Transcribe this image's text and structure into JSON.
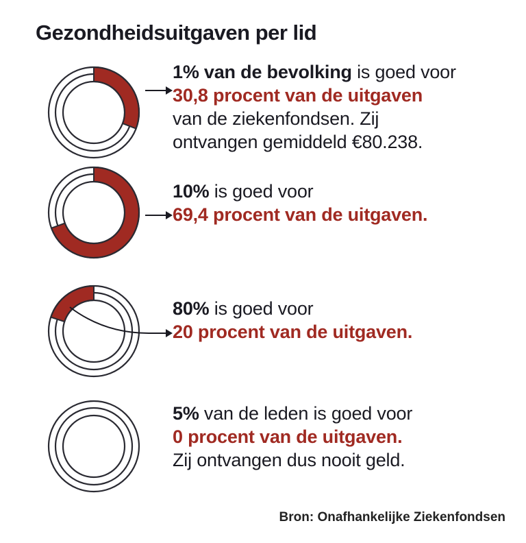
{
  "title": "Gezondheidsuitgaven per lid",
  "colors": {
    "accent": "#a02a22",
    "ring": "#2a2a32",
    "text": "#1a1a22"
  },
  "chart_data": {
    "type": "pie",
    "title": "Gezondheidsuitgaven per lid",
    "items": [
      {
        "population_pct": 1,
        "spending_pct": 30.8,
        "lead_bold": "1% van de bevolking",
        "lead_rest": " is goed voor",
        "highlight": "30,8 procent van de uitgaven",
        "extra": [
          "van de ziekenfondsen. Zij",
          "ontvangen gemiddeld €80.238."
        ]
      },
      {
        "population_pct": 10,
        "spending_pct": 69.4,
        "lead_bold": "10%",
        "lead_rest": " is goed voor",
        "highlight": "69,4 procent van de uitgaven.",
        "extra": []
      },
      {
        "population_pct": 80,
        "spending_pct": 20,
        "lead_bold": "80%",
        "lead_rest": " is goed voor",
        "highlight": "20 procent van de uitgaven.",
        "extra": []
      },
      {
        "population_pct": 5,
        "spending_pct": 0,
        "lead_bold": "5%",
        "lead_rest": " van de leden is goed voor",
        "highlight": "0 procent van de uitgaven.",
        "extra": [
          "Zij ontvangen dus nooit geld."
        ]
      }
    ]
  },
  "source": "Bron: Onafhankelijke Ziekenfondsen"
}
